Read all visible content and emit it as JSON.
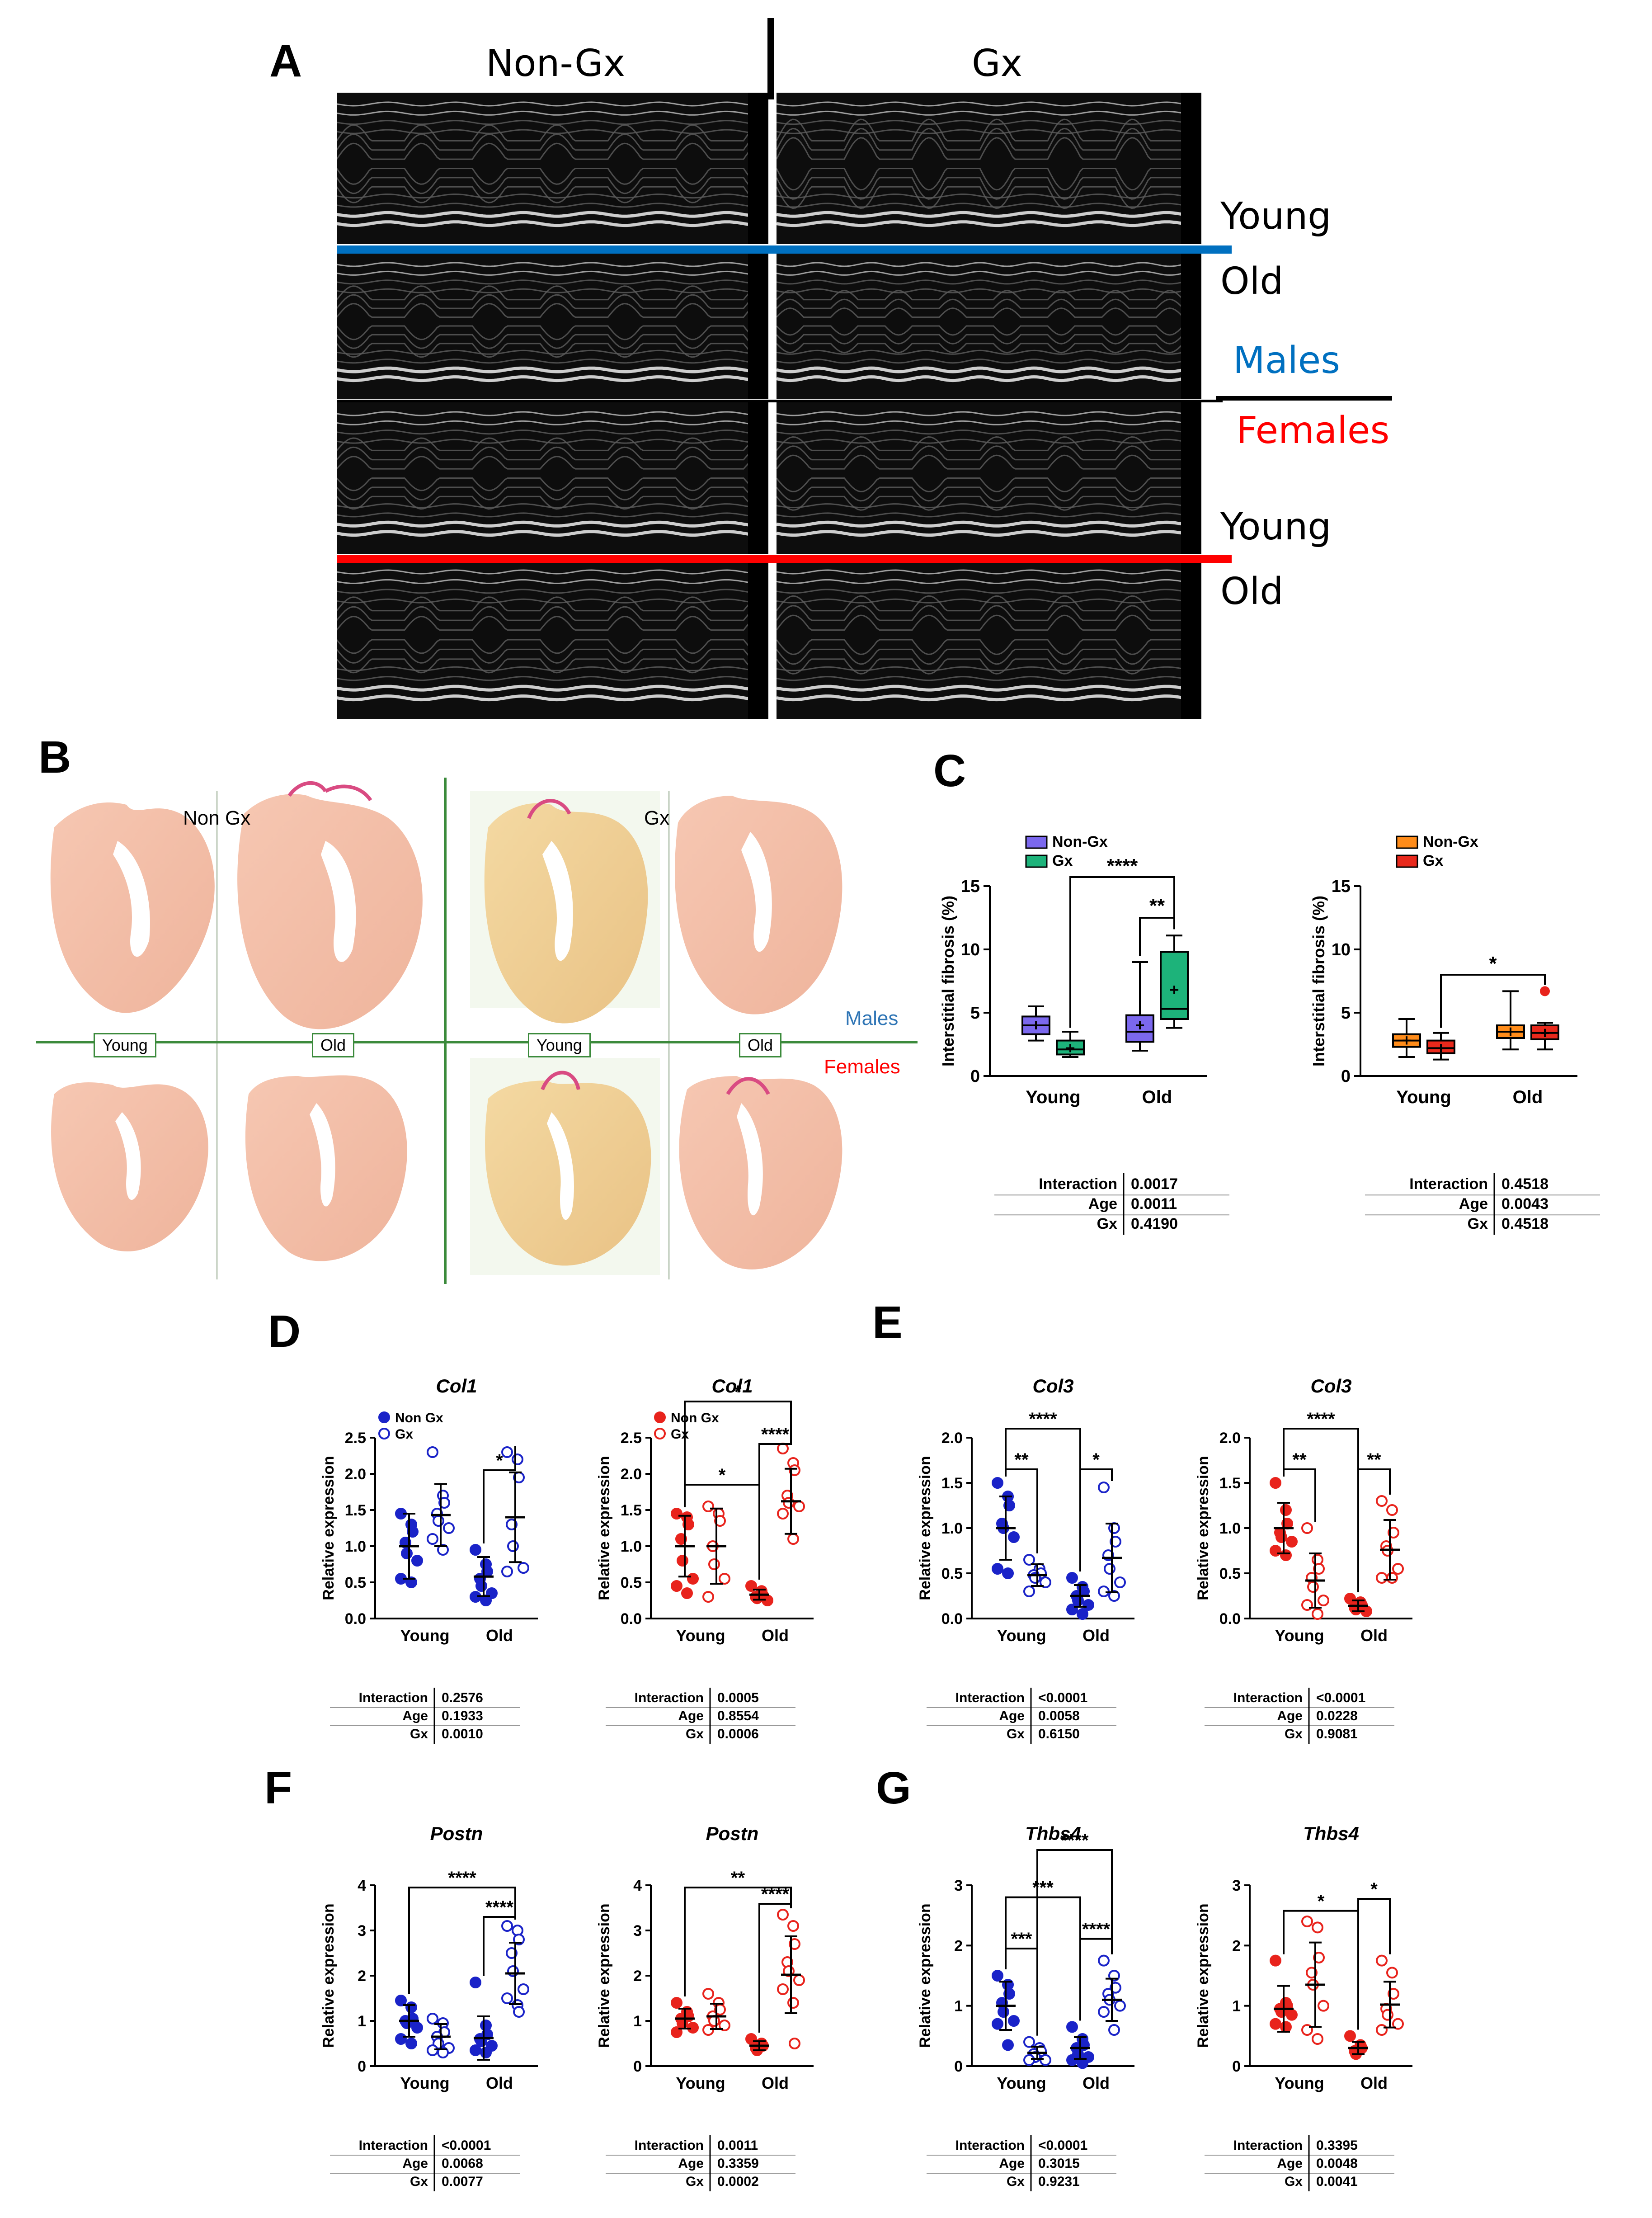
{
  "panels": {
    "A": "A",
    "B": "B",
    "C": "C",
    "D": "D",
    "E": "E",
    "F": "F",
    "G": "G"
  },
  "panelA": {
    "col_nongx": "Non-Gx",
    "col_gx": "Gx",
    "young": "Young",
    "old": "Old",
    "males": "Males",
    "females": "Females",
    "young2": "Young",
    "old2": "Old",
    "colors": {
      "males_line": "#0070c0",
      "females_line": "#ff0000",
      "males_text": "#0070c0",
      "females_text": "#ff0000"
    }
  },
  "panelB": {
    "non_gx": "Non Gx",
    "gx": "Gx",
    "young": "Young",
    "old": "Old",
    "young2": "Young",
    "old2": "Old",
    "males": "Males",
    "females": "Females",
    "colors": {
      "grid": "#3b8a3b",
      "males": "#2f75b5",
      "females": "#ff0000"
    }
  },
  "chart_data": [
    {
      "id": "C1",
      "type": "box",
      "ylabel": "Interstitial fibrosis (%)",
      "ylim": [
        0,
        15
      ],
      "yticks": [
        "0",
        "5",
        "10",
        "15"
      ],
      "categories": [
        "Young",
        "Old"
      ],
      "legend": [
        {
          "name": "Non-Gx",
          "color": "#7b68ee"
        },
        {
          "name": "Gx",
          "color": "#1db37a"
        }
      ],
      "series": [
        {
          "name": "Non-Gx",
          "color": "#7b68ee",
          "boxes": [
            {
              "min": 2.8,
              "q1": 3.3,
              "median": 4.0,
              "q3": 4.7,
              "max": 5.5,
              "mean": 4.0
            },
            {
              "min": 2.0,
              "q1": 2.7,
              "median": 3.5,
              "q3": 4.8,
              "max": 9.0,
              "mean": 4.0
            }
          ]
        },
        {
          "name": "Gx",
          "color": "#1db37a",
          "boxes": [
            {
              "min": 1.5,
              "q1": 1.7,
              "median": 2.1,
              "q3": 2.8,
              "max": 3.5,
              "mean": 2.2
            },
            {
              "min": 3.8,
              "q1": 4.5,
              "median": 5.3,
              "q3": 9.8,
              "max": 11.1,
              "mean": 6.8
            }
          ]
        }
      ],
      "sig": [
        {
          "text": "****"
        },
        {
          "text": "**"
        }
      ],
      "stats": [
        [
          "Interaction",
          "0.0017"
        ],
        [
          "Age",
          "0.0011"
        ],
        [
          "Gx",
          "0.4190"
        ]
      ]
    },
    {
      "id": "C2",
      "type": "box",
      "ylabel": "Interstitial fibrosis (%)",
      "ylim": [
        0,
        15
      ],
      "yticks": [
        "0",
        "5",
        "10",
        "15"
      ],
      "categories": [
        "Young",
        "Old"
      ],
      "legend": [
        {
          "name": "Non-Gx",
          "color": "#ff8c1a"
        },
        {
          "name": "Gx",
          "color": "#e8291c"
        }
      ],
      "series": [
        {
          "name": "Non-Gx",
          "color": "#ff8c1a",
          "boxes": [
            {
              "min": 1.5,
              "q1": 2.3,
              "median": 2.8,
              "q3": 3.3,
              "max": 4.5,
              "mean": 2.8
            },
            {
              "min": 2.1,
              "q1": 3.0,
              "median": 3.5,
              "q3": 4.0,
              "max": 6.7,
              "mean": 3.5
            }
          ]
        },
        {
          "name": "Gx",
          "color": "#e8291c",
          "boxes": [
            {
              "min": 1.3,
              "q1": 1.8,
              "median": 2.2,
              "q3": 2.8,
              "max": 3.4,
              "mean": 2.2
            },
            {
              "min": 2.1,
              "q1": 2.9,
              "median": 3.4,
              "q3": 4.0,
              "max": 4.2,
              "mean": 3.4,
              "outlier": 6.7
            }
          ]
        }
      ],
      "sig": [
        {
          "text": "*"
        }
      ],
      "stats": [
        [
          "Interaction",
          "0.4518"
        ],
        [
          "Age",
          "0.0043"
        ],
        [
          "Gx",
          "0.4518"
        ]
      ]
    },
    {
      "id": "D1",
      "type": "scatter",
      "title": "Col1",
      "ylabel": "Relative expression",
      "ylim": [
        0,
        2.5
      ],
      "yticks": [
        "0.0",
        "0.5",
        "1.0",
        "1.5",
        "2.0",
        "2.5"
      ],
      "categories": [
        "Young",
        "Old"
      ],
      "color": "#1a23c8",
      "legend": [
        {
          "name": "Non Gx",
          "filled": true
        },
        {
          "name": "Gx",
          "filled": false
        }
      ],
      "groups": [
        {
          "filled": true,
          "mean": 1.0,
          "sd": 0.45,
          "points": [
            1.45,
            1.3,
            1.2,
            1.05,
            0.9,
            0.8,
            0.55,
            0.5
          ]
        },
        {
          "filled": false,
          "mean": 1.43,
          "sd": 0.43,
          "points": [
            2.3,
            1.7,
            1.6,
            1.45,
            1.35,
            1.25,
            1.1,
            0.95
          ]
        },
        {
          "filled": true,
          "mean": 0.58,
          "sd": 0.27,
          "points": [
            0.95,
            0.75,
            0.65,
            0.55,
            0.45,
            0.35,
            0.3,
            0.25
          ]
        },
        {
          "filled": false,
          "mean": 1.4,
          "sd": 0.62,
          "points": [
            2.3,
            2.2,
            1.95,
            1.3,
            1.0,
            0.7,
            0.65
          ]
        }
      ],
      "sig": [
        {
          "text": "*"
        }
      ],
      "stats": [
        [
          "Interaction",
          "0.2576"
        ],
        [
          "Age",
          "0.1933"
        ],
        [
          "Gx",
          "0.0010"
        ]
      ]
    },
    {
      "id": "D2",
      "type": "scatter",
      "title": "Col1",
      "ylabel": "Relative expression",
      "ylim": [
        0,
        2.5
      ],
      "yticks": [
        "0.0",
        "0.5",
        "1.0",
        "1.5",
        "2.0",
        "2.5"
      ],
      "categories": [
        "Young",
        "Old"
      ],
      "color": "#e8231c",
      "legend": [
        {
          "name": "Non Gx",
          "filled": true
        },
        {
          "name": "Gx",
          "filled": false
        }
      ],
      "groups": [
        {
          "filled": true,
          "mean": 1.0,
          "sd": 0.42,
          "points": [
            1.45,
            1.4,
            1.3,
            1.1,
            0.8,
            0.55,
            0.45,
            0.35
          ]
        },
        {
          "filled": false,
          "mean": 1.0,
          "sd": 0.52,
          "points": [
            1.55,
            1.45,
            1.35,
            1.0,
            0.75,
            0.55,
            0.3
          ]
        },
        {
          "filled": true,
          "mean": 0.33,
          "sd": 0.07,
          "points": [
            0.45,
            0.38,
            0.32,
            0.3,
            0.28,
            0.25
          ]
        },
        {
          "filled": false,
          "mean": 1.62,
          "sd": 0.45,
          "points": [
            2.35,
            2.15,
            2.05,
            1.7,
            1.6,
            1.55,
            1.45,
            1.1
          ]
        }
      ],
      "sig": [
        {
          "text": "*"
        },
        {
          "text": "*"
        },
        {
          "text": "****"
        }
      ],
      "stats": [
        [
          "Interaction",
          "0.0005"
        ],
        [
          "Age",
          "0.8554"
        ],
        [
          "Gx",
          "0.0006"
        ]
      ]
    },
    {
      "id": "E1",
      "type": "scatter",
      "title": "Col3",
      "ylabel": "Relative expression",
      "ylim": [
        0,
        2.0
      ],
      "yticks": [
        "0.0",
        "0.5",
        "1.0",
        "1.5",
        "2.0"
      ],
      "categories": [
        "Young",
        "Old"
      ],
      "color": "#1a23c8",
      "groups": [
        {
          "filled": true,
          "mean": 1.0,
          "sd": 0.35,
          "points": [
            1.5,
            1.35,
            1.25,
            1.05,
            1.0,
            0.9,
            0.55,
            0.5
          ]
        },
        {
          "filled": false,
          "mean": 0.48,
          "sd": 0.12,
          "points": [
            0.65,
            0.55,
            0.5,
            0.48,
            0.45,
            0.4,
            0.3
          ]
        },
        {
          "filled": true,
          "mean": 0.25,
          "sd": 0.12,
          "points": [
            0.45,
            0.35,
            0.3,
            0.25,
            0.2,
            0.15,
            0.1,
            0.05
          ]
        },
        {
          "filled": false,
          "mean": 0.67,
          "sd": 0.38,
          "points": [
            1.45,
            1.0,
            0.85,
            0.7,
            0.55,
            0.4,
            0.3,
            0.25
          ]
        }
      ],
      "sig": [
        {
          "text": "****"
        },
        {
          "text": "**"
        },
        {
          "text": "*"
        }
      ],
      "stats": [
        [
          "Interaction",
          "<0.0001"
        ],
        [
          "Age",
          "0.0058"
        ],
        [
          "Gx",
          "0.6150"
        ]
      ]
    },
    {
      "id": "E2",
      "type": "scatter",
      "title": "Col3",
      "ylabel": "Relative expression",
      "ylim": [
        0,
        2.0
      ],
      "yticks": [
        "0.0",
        "0.5",
        "1.0",
        "1.5",
        "2.0"
      ],
      "categories": [
        "Young",
        "Old"
      ],
      "color": "#e8231c",
      "groups": [
        {
          "filled": true,
          "mean": 1.0,
          "sd": 0.28,
          "points": [
            1.5,
            1.2,
            1.05,
            0.95,
            0.9,
            0.85,
            0.75,
            0.7
          ]
        },
        {
          "filled": false,
          "mean": 0.42,
          "sd": 0.3,
          "points": [
            1.0,
            0.65,
            0.55,
            0.45,
            0.35,
            0.2,
            0.15,
            0.05
          ]
        },
        {
          "filled": true,
          "mean": 0.14,
          "sd": 0.06,
          "points": [
            0.22,
            0.18,
            0.15,
            0.12,
            0.1,
            0.08
          ]
        },
        {
          "filled": false,
          "mean": 0.76,
          "sd": 0.33,
          "points": [
            1.3,
            1.2,
            0.95,
            0.8,
            0.75,
            0.55,
            0.45,
            0.45
          ]
        }
      ],
      "sig": [
        {
          "text": "****"
        },
        {
          "text": "**"
        },
        {
          "text": "**"
        }
      ],
      "stats": [
        [
          "Interaction",
          "<0.0001"
        ],
        [
          "Age",
          "0.0228"
        ],
        [
          "Gx",
          "0.9081"
        ]
      ]
    },
    {
      "id": "F1",
      "type": "scatter",
      "title": "Postn",
      "ylabel": "Relative expression",
      "ylim": [
        0,
        4
      ],
      "yticks": [
        "0",
        "1",
        "2",
        "3",
        "4"
      ],
      "categories": [
        "Young",
        "Old"
      ],
      "color": "#1a23c8",
      "groups": [
        {
          "filled": true,
          "mean": 1.0,
          "sd": 0.35,
          "points": [
            1.45,
            1.3,
            1.05,
            1.0,
            0.95,
            0.85,
            0.6,
            0.5
          ]
        },
        {
          "filled": false,
          "mean": 0.65,
          "sd": 0.28,
          "points": [
            1.05,
            0.95,
            0.75,
            0.65,
            0.5,
            0.4,
            0.35,
            0.3
          ]
        },
        {
          "filled": true,
          "mean": 0.62,
          "sd": 0.48,
          "points": [
            1.85,
            0.9,
            0.7,
            0.6,
            0.55,
            0.45,
            0.35,
            0.3
          ]
        },
        {
          "filled": false,
          "mean": 2.05,
          "sd": 0.68,
          "points": [
            3.1,
            3.0,
            2.8,
            2.5,
            2.1,
            1.7,
            1.5,
            1.35,
            1.2
          ]
        }
      ],
      "sig": [
        {
          "text": "****"
        },
        {
          "text": "****"
        }
      ],
      "stats": [
        [
          "Interaction",
          "<0.0001"
        ],
        [
          "Age",
          "0.0068"
        ],
        [
          "Gx",
          "0.0077"
        ]
      ]
    },
    {
      "id": "F2",
      "type": "scatter",
      "title": "Postn",
      "ylabel": "Relative expression",
      "ylim": [
        0,
        4
      ],
      "yticks": [
        "0",
        "1",
        "2",
        "3",
        "4"
      ],
      "categories": [
        "Young",
        "Old"
      ],
      "color": "#e8231c",
      "groups": [
        {
          "filled": true,
          "mean": 1.05,
          "sd": 0.22,
          "points": [
            1.4,
            1.2,
            1.1,
            1.05,
            0.95,
            0.85,
            0.75
          ]
        },
        {
          "filled": false,
          "mean": 1.1,
          "sd": 0.28,
          "points": [
            1.6,
            1.4,
            1.25,
            1.1,
            1.0,
            0.9,
            0.8
          ]
        },
        {
          "filled": true,
          "mean": 0.45,
          "sd": 0.1,
          "points": [
            0.6,
            0.5,
            0.45,
            0.4,
            0.35
          ]
        },
        {
          "filled": false,
          "mean": 2.02,
          "sd": 0.85,
          "points": [
            3.35,
            3.1,
            2.7,
            2.3,
            2.1,
            1.9,
            1.7,
            1.4,
            0.5
          ]
        }
      ],
      "sig": [
        {
          "text": "**"
        },
        {
          "text": "****"
        }
      ],
      "stats": [
        [
          "Interaction",
          "0.0011"
        ],
        [
          "Age",
          "0.3359"
        ],
        [
          "Gx",
          "0.0002"
        ]
      ]
    },
    {
      "id": "G1",
      "type": "scatter",
      "title": "Thbs4",
      "ylabel": "Relative expression",
      "ylim": [
        0,
        3
      ],
      "yticks": [
        "0",
        "1",
        "2",
        "3"
      ],
      "categories": [
        "Young",
        "Old"
      ],
      "color": "#1a23c8",
      "groups": [
        {
          "filled": true,
          "mean": 1.0,
          "sd": 0.4,
          "points": [
            1.5,
            1.35,
            1.2,
            1.05,
            0.9,
            0.75,
            0.7,
            0.35
          ]
        },
        {
          "filled": false,
          "mean": 0.22,
          "sd": 0.1,
          "points": [
            0.4,
            0.3,
            0.25,
            0.2,
            0.15,
            0.1,
            0.1
          ]
        },
        {
          "filled": true,
          "mean": 0.3,
          "sd": 0.18,
          "points": [
            0.65,
            0.45,
            0.35,
            0.3,
            0.2,
            0.15,
            0.1,
            0.05
          ]
        },
        {
          "filled": false,
          "mean": 1.1,
          "sd": 0.35,
          "points": [
            1.75,
            1.5,
            1.3,
            1.2,
            1.1,
            1.0,
            0.9,
            0.6
          ]
        }
      ],
      "sig": [
        {
          "text": "****"
        },
        {
          "text": "***"
        },
        {
          "text": "***"
        },
        {
          "text": "****"
        }
      ],
      "stats": [
        [
          "Interaction",
          "<0.0001"
        ],
        [
          "Age",
          "0.3015"
        ],
        [
          "Gx",
          "0.9231"
        ]
      ]
    },
    {
      "id": "G2",
      "type": "scatter",
      "title": "Thbs4",
      "ylabel": "Relative expression",
      "ylim": [
        0,
        3
      ],
      "yticks": [
        "0",
        "1",
        "2",
        "3"
      ],
      "categories": [
        "Young",
        "Old"
      ],
      "color": "#e8231c",
      "groups": [
        {
          "filled": true,
          "mean": 0.95,
          "sd": 0.38,
          "points": [
            1.75,
            1.05,
            1.0,
            0.95,
            0.9,
            0.85,
            0.7,
            0.65
          ]
        },
        {
          "filled": false,
          "mean": 1.35,
          "sd": 0.7,
          "points": [
            2.4,
            2.3,
            1.8,
            1.55,
            1.35,
            1.0,
            0.6,
            0.45
          ]
        },
        {
          "filled": true,
          "mean": 0.3,
          "sd": 0.1,
          "points": [
            0.5,
            0.35,
            0.3,
            0.25,
            0.2
          ]
        },
        {
          "filled": false,
          "mean": 1.02,
          "sd": 0.38,
          "points": [
            1.75,
            1.55,
            1.2,
            0.95,
            0.85,
            0.7,
            0.6
          ]
        }
      ],
      "sig": [
        {
          "text": "*"
        },
        {
          "text": "*"
        }
      ],
      "stats": [
        [
          "Interaction",
          "0.3395"
        ],
        [
          "Age",
          "0.0048"
        ],
        [
          "Gx",
          "0.0041"
        ]
      ]
    }
  ]
}
